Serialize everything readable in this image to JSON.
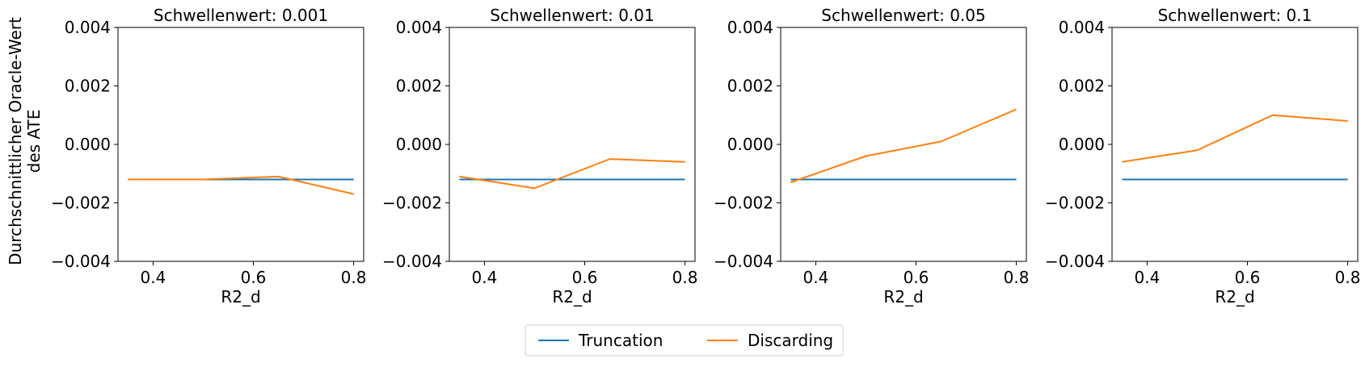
{
  "figure": {
    "ylabel_line1": "Durchschnittlicher Oracle-Wert",
    "ylabel_line2": "des ATE",
    "xlabel": "R2_d"
  },
  "colors": {
    "Truncation": "#1f77b4",
    "Discarding": "#ff7f0e"
  },
  "chart_data": [
    {
      "type": "line",
      "title": "Schwellenwert: 0.001",
      "xlabel": "R2_d",
      "ylabel": "Durchschnittlicher Oracle-Wert des ATE",
      "xlim": [
        0.33,
        0.82
      ],
      "ylim": [
        -0.004,
        0.004
      ],
      "xticks": [
        0.4,
        0.6,
        0.8
      ],
      "yticks": [
        -0.004,
        -0.002,
        0.0,
        0.002,
        0.004
      ],
      "x": [
        0.35,
        0.5,
        0.65,
        0.8
      ],
      "series": [
        {
          "name": "Truncation",
          "values": [
            -0.0012,
            -0.0012,
            -0.0012,
            -0.0012
          ]
        },
        {
          "name": "Discarding",
          "values": [
            -0.0012,
            -0.0012,
            -0.0011,
            -0.0017
          ]
        }
      ]
    },
    {
      "type": "line",
      "title": "Schwellenwert: 0.01",
      "xlabel": "R2_d",
      "xlim": [
        0.33,
        0.82
      ],
      "ylim": [
        -0.004,
        0.004
      ],
      "xticks": [
        0.4,
        0.6,
        0.8
      ],
      "yticks": [
        -0.004,
        -0.002,
        0.0,
        0.002,
        0.004
      ],
      "x": [
        0.35,
        0.5,
        0.65,
        0.8
      ],
      "series": [
        {
          "name": "Truncation",
          "values": [
            -0.0012,
            -0.0012,
            -0.0012,
            -0.0012
          ]
        },
        {
          "name": "Discarding",
          "values": [
            -0.0011,
            -0.0015,
            -0.0005,
            -0.0006
          ]
        }
      ]
    },
    {
      "type": "line",
      "title": "Schwellenwert: 0.05",
      "xlabel": "R2_d",
      "xlim": [
        0.33,
        0.82
      ],
      "ylim": [
        -0.004,
        0.004
      ],
      "xticks": [
        0.4,
        0.6,
        0.8
      ],
      "yticks": [
        -0.004,
        -0.002,
        0.0,
        0.002,
        0.004
      ],
      "x": [
        0.35,
        0.5,
        0.65,
        0.8
      ],
      "series": [
        {
          "name": "Truncation",
          "values": [
            -0.0012,
            -0.0012,
            -0.0012,
            -0.0012
          ]
        },
        {
          "name": "Discarding",
          "values": [
            -0.0013,
            -0.0004,
            0.0001,
            0.0012
          ]
        }
      ]
    },
    {
      "type": "line",
      "title": "Schwellenwert: 0.1",
      "xlabel": "R2_d",
      "xlim": [
        0.33,
        0.82
      ],
      "ylim": [
        -0.004,
        0.004
      ],
      "xticks": [
        0.4,
        0.6,
        0.8
      ],
      "yticks": [
        -0.004,
        -0.002,
        0.0,
        0.002,
        0.004
      ],
      "x": [
        0.35,
        0.5,
        0.65,
        0.8
      ],
      "series": [
        {
          "name": "Truncation",
          "values": [
            -0.0012,
            -0.0012,
            -0.0012,
            -0.0012
          ]
        },
        {
          "name": "Discarding",
          "values": [
            -0.0006,
            -0.0002,
            0.001,
            0.0008
          ]
        }
      ]
    }
  ],
  "legend": {
    "placement": "bottom-center",
    "entries": [
      {
        "name": "Truncation"
      },
      {
        "name": "Discarding"
      }
    ]
  }
}
